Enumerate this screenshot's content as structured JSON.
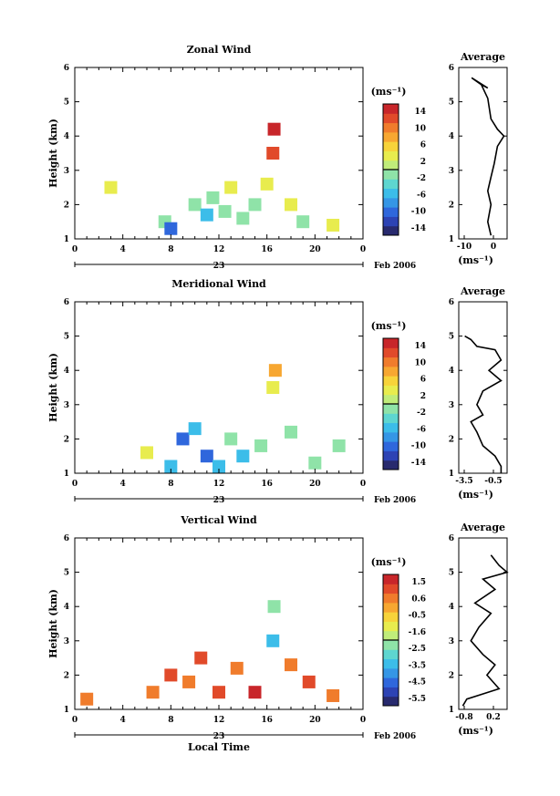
{
  "panels": [
    {
      "title": "Zonal Wind",
      "ylabel": "Height (km)",
      "ylim": [
        1,
        6
      ],
      "yticks": [
        "1",
        "2",
        "3",
        "4",
        "5",
        "6"
      ],
      "xticks": [
        "0",
        "4",
        "8",
        "12",
        "16",
        "20",
        "0"
      ],
      "day_label": "23",
      "date_label": "Feb 2006",
      "colorbar_unit": "(ms⁻¹)",
      "colorbar_ticks": [
        "14",
        "10",
        "6",
        "2",
        "-2",
        "-6",
        "-10",
        "-14"
      ],
      "avg_title": "Average",
      "avg_xticks": [
        "-10",
        "0"
      ],
      "avg_unit": "(ms⁻¹)"
    },
    {
      "title": "Meridional Wind",
      "ylabel": "Height (km)",
      "ylim": [
        1,
        6
      ],
      "yticks": [
        "1",
        "2",
        "3",
        "4",
        "5",
        "6"
      ],
      "xticks": [
        "0",
        "4",
        "8",
        "12",
        "16",
        "20",
        "0"
      ],
      "day_label": "23",
      "date_label": "Feb 2006",
      "colorbar_unit": "(ms⁻¹)",
      "colorbar_ticks": [
        "14",
        "10",
        "6",
        "2",
        "-2",
        "-6",
        "-10",
        "-14"
      ],
      "avg_title": "Average",
      "avg_xticks": [
        "-3.5",
        "-0.5"
      ],
      "avg_unit": "(ms⁻¹)"
    },
    {
      "title": "Vertical Wind",
      "ylabel": "Height (km)",
      "ylim": [
        1,
        6
      ],
      "yticks": [
        "1",
        "2",
        "3",
        "4",
        "5",
        "6"
      ],
      "xticks": [
        "0",
        "4",
        "8",
        "12",
        "16",
        "20",
        "0"
      ],
      "day_label": "23",
      "date_label": "Feb 2006",
      "xlabel": "Local Time",
      "colorbar_unit": "(ms⁻¹)",
      "colorbar_ticks": [
        "1.5",
        "0.6",
        "-0.5",
        "-1.6",
        "-2.5",
        "-3.5",
        "-4.5",
        "-5.5"
      ],
      "avg_title": "Average",
      "avg_xticks": [
        "-0.8",
        "0.2"
      ],
      "avg_unit": "(ms⁻¹)"
    }
  ],
  "colorbar_colors": [
    "#282a6e",
    "#2d43b4",
    "#2f67dc",
    "#3596e6",
    "#3cbde9",
    "#5ed6d0",
    "#8fe3a8",
    "#c0ec7a",
    "#e8ec4e",
    "#f7d33a",
    "#f7a731",
    "#f07c2c",
    "#e14a2a",
    "#c8262a"
  ],
  "chart_data": [
    {
      "type": "heatmap",
      "title": "Zonal Wind",
      "xlabel": "",
      "ylabel": "Height (km)",
      "xlim": [
        0,
        24
      ],
      "ylim": [
        1,
        6
      ],
      "value_range": [
        -14,
        14
      ],
      "cells": [
        {
          "x": 3.0,
          "y": 2.5,
          "v": 2
        },
        {
          "x": 7.5,
          "y": 1.5,
          "v": -2
        },
        {
          "x": 8.0,
          "y": 1.3,
          "v": -10
        },
        {
          "x": 10.0,
          "y": 2.0,
          "v": -2
        },
        {
          "x": 11.0,
          "y": 1.7,
          "v": -6
        },
        {
          "x": 11.5,
          "y": 2.2,
          "v": -2
        },
        {
          "x": 12.5,
          "y": 1.8,
          "v": -2
        },
        {
          "x": 13.0,
          "y": 2.5,
          "v": 2
        },
        {
          "x": 14.0,
          "y": 1.6,
          "v": -2
        },
        {
          "x": 15.0,
          "y": 2.0,
          "v": -2
        },
        {
          "x": 16.0,
          "y": 2.6,
          "v": 2
        },
        {
          "x": 16.5,
          "y": 3.5,
          "v": 10
        },
        {
          "x": 16.6,
          "y": 4.2,
          "v": 14
        },
        {
          "x": 18.0,
          "y": 2.0,
          "v": 2
        },
        {
          "x": 19.0,
          "y": 1.5,
          "v": -2
        },
        {
          "x": 21.5,
          "y": 1.4,
          "v": 2
        }
      ],
      "average_profile": {
        "title": "Average",
        "xlim": [
          -10,
          5
        ],
        "points": [
          [
            -3,
            5.5
          ],
          [
            -1,
            5.4
          ],
          [
            -6,
            5.7
          ],
          [
            -3,
            5.5
          ],
          [
            -1,
            5.1
          ],
          [
            0,
            4.5
          ],
          [
            2,
            4.2
          ],
          [
            4,
            4.0
          ],
          [
            2,
            3.7
          ],
          [
            1,
            3.2
          ],
          [
            0,
            2.8
          ],
          [
            -1,
            2.4
          ],
          [
            0,
            2.0
          ],
          [
            -1,
            1.5
          ],
          [
            0,
            1.1
          ]
        ]
      }
    },
    {
      "type": "heatmap",
      "title": "Meridional Wind",
      "xlabel": "",
      "ylabel": "Height (km)",
      "xlim": [
        0,
        24
      ],
      "ylim": [
        1,
        6
      ],
      "value_range": [
        -14,
        14
      ],
      "cells": [
        {
          "x": 6.0,
          "y": 1.6,
          "v": 2
        },
        {
          "x": 8.0,
          "y": 1.2,
          "v": -6
        },
        {
          "x": 9.0,
          "y": 2.0,
          "v": -10
        },
        {
          "x": 10.0,
          "y": 2.3,
          "v": -6
        },
        {
          "x": 11.0,
          "y": 1.5,
          "v": -10
        },
        {
          "x": 12.0,
          "y": 1.2,
          "v": -6
        },
        {
          "x": 13.0,
          "y": 2.0,
          "v": -2
        },
        {
          "x": 14.0,
          "y": 1.5,
          "v": -6
        },
        {
          "x": 15.5,
          "y": 1.8,
          "v": -2
        },
        {
          "x": 16.5,
          "y": 3.5,
          "v": 2
        },
        {
          "x": 16.7,
          "y": 4.0,
          "v": 6
        },
        {
          "x": 18.0,
          "y": 2.2,
          "v": -2
        },
        {
          "x": 20.0,
          "y": 1.3,
          "v": -2
        },
        {
          "x": 22.0,
          "y": 1.8,
          "v": -2
        }
      ],
      "average_profile": {
        "title": "Average",
        "xlim": [
          -4,
          0
        ],
        "points": [
          [
            -3.5,
            5.0
          ],
          [
            -3.0,
            4.9
          ],
          [
            -2.5,
            4.7
          ],
          [
            -1.0,
            4.6
          ],
          [
            -0.5,
            4.3
          ],
          [
            -1.5,
            4.0
          ],
          [
            -0.5,
            3.7
          ],
          [
            -2.0,
            3.4
          ],
          [
            -2.5,
            3.0
          ],
          [
            -2.0,
            2.7
          ],
          [
            -3.0,
            2.5
          ],
          [
            -2.5,
            2.2
          ],
          [
            -2.0,
            1.8
          ],
          [
            -1.0,
            1.5
          ],
          [
            -0.5,
            1.2
          ],
          [
            -0.5,
            1.0
          ]
        ]
      }
    },
    {
      "type": "heatmap",
      "title": "Vertical Wind",
      "xlabel": "Local Time",
      "ylabel": "Height (km)",
      "xlim": [
        0,
        24
      ],
      "ylim": [
        1,
        6
      ],
      "value_range": [
        -5.5,
        1.5
      ],
      "cells": [
        {
          "x": 1.0,
          "y": 1.3,
          "v": 0.0
        },
        {
          "x": 6.5,
          "y": 1.5,
          "v": 0.0
        },
        {
          "x": 8.0,
          "y": 2.0,
          "v": 0.6
        },
        {
          "x": 9.5,
          "y": 1.8,
          "v": 0.3
        },
        {
          "x": 10.5,
          "y": 2.5,
          "v": 0.8
        },
        {
          "x": 12.0,
          "y": 1.5,
          "v": 0.6
        },
        {
          "x": 13.5,
          "y": 2.2,
          "v": 0.3
        },
        {
          "x": 15.0,
          "y": 1.5,
          "v": 1.0
        },
        {
          "x": 16.5,
          "y": 3.0,
          "v": -3.5
        },
        {
          "x": 16.6,
          "y": 4.0,
          "v": -2.5
        },
        {
          "x": 18.0,
          "y": 2.3,
          "v": 0.3
        },
        {
          "x": 19.5,
          "y": 1.8,
          "v": 0.6
        },
        {
          "x": 21.5,
          "y": 1.4,
          "v": 0.0
        }
      ],
      "average_profile": {
        "title": "Average",
        "xlim": [
          -0.8,
          0.4
        ],
        "points": [
          [
            0.0,
            5.5
          ],
          [
            0.2,
            5.2
          ],
          [
            0.4,
            5.0
          ],
          [
            -0.2,
            4.8
          ],
          [
            0.1,
            4.5
          ],
          [
            -0.4,
            4.1
          ],
          [
            0.0,
            3.8
          ],
          [
            -0.3,
            3.4
          ],
          [
            -0.5,
            3.0
          ],
          [
            -0.2,
            2.6
          ],
          [
            0.1,
            2.3
          ],
          [
            -0.1,
            2.0
          ],
          [
            0.2,
            1.6
          ],
          [
            -0.6,
            1.3
          ],
          [
            -0.7,
            1.1
          ]
        ]
      }
    }
  ]
}
